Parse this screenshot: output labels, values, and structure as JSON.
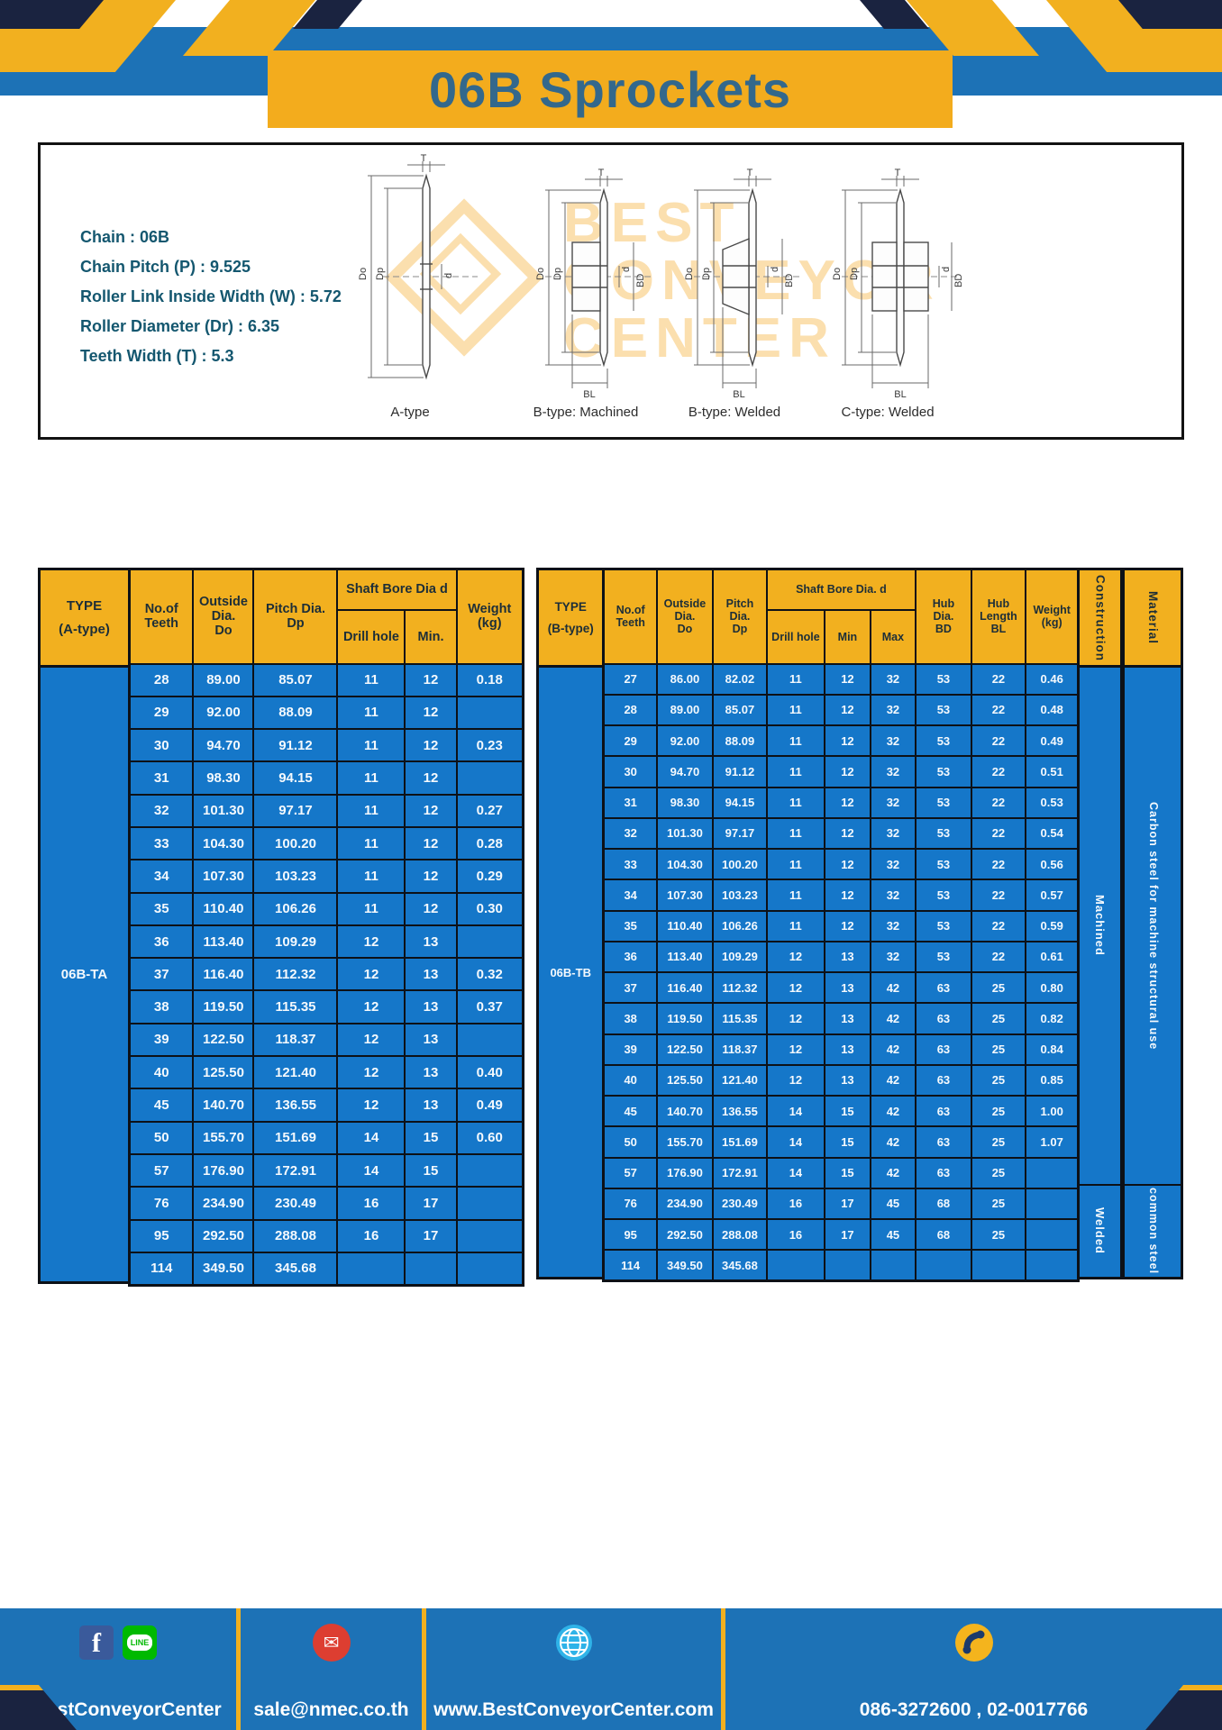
{
  "page_title": "06B Sprockets",
  "colors": {
    "band_blue": "#1d72b6",
    "cell_blue": "#1577c9",
    "header_yellow": "#f2b01f",
    "navy_accent": "#1a2340",
    "title_text": "#33688c"
  },
  "specs": {
    "lines": "Chain : 06B\nChain Pitch (P) : 9.525\nRoller Link Inside Width (W) : 5.72\nRoller Diameter (Dr) : 6.35\nTeeth Width (T) : 5.3"
  },
  "watermark": {
    "text": "BEST\nCONVEYOR\nCENTER"
  },
  "diagrams": {
    "labels": [
      "A-type",
      "B-type: Machined",
      "B-type: Welded",
      "C-type: Welded"
    ],
    "dims": {
      "t": "T",
      "do": "Do",
      "dp": "Dp",
      "d": "d",
      "bd": "BD",
      "bl": "BL"
    }
  },
  "table_a": {
    "type_header": "TYPE\n(A-type)",
    "type_value": "06B-TA",
    "headers": {
      "teeth": "No.of\nTeeth",
      "outside": "Outside\nDia.\nDo",
      "pitch": "Pitch Dia.\nDp",
      "shaft_bore": "Shaft Bore Dia d",
      "drill": "Drill hole",
      "min": "Min.",
      "weight": "Weight\n(kg)"
    },
    "rows": [
      [
        "28",
        "89.00",
        "85.07",
        "11",
        "12",
        "0.18"
      ],
      [
        "29",
        "92.00",
        "88.09",
        "11",
        "12",
        ""
      ],
      [
        "30",
        "94.70",
        "91.12",
        "11",
        "12",
        "0.23"
      ],
      [
        "31",
        "98.30",
        "94.15",
        "11",
        "12",
        ""
      ],
      [
        "32",
        "101.30",
        "97.17",
        "11",
        "12",
        "0.27"
      ],
      [
        "33",
        "104.30",
        "100.20",
        "11",
        "12",
        "0.28"
      ],
      [
        "34",
        "107.30",
        "103.23",
        "11",
        "12",
        "0.29"
      ],
      [
        "35",
        "110.40",
        "106.26",
        "11",
        "12",
        "0.30"
      ],
      [
        "36",
        "113.40",
        "109.29",
        "12",
        "13",
        ""
      ],
      [
        "37",
        "116.40",
        "112.32",
        "12",
        "13",
        "0.32"
      ],
      [
        "38",
        "119.50",
        "115.35",
        "12",
        "13",
        "0.37"
      ],
      [
        "39",
        "122.50",
        "118.37",
        "12",
        "13",
        ""
      ],
      [
        "40",
        "125.50",
        "121.40",
        "12",
        "13",
        "0.40"
      ],
      [
        "45",
        "140.70",
        "136.55",
        "12",
        "13",
        "0.49"
      ],
      [
        "50",
        "155.70",
        "151.69",
        "14",
        "15",
        "0.60"
      ],
      [
        "57",
        "176.90",
        "172.91",
        "14",
        "15",
        ""
      ],
      [
        "76",
        "234.90",
        "230.49",
        "16",
        "17",
        ""
      ],
      [
        "95",
        "292.50",
        "288.08",
        "16",
        "17",
        ""
      ],
      [
        "114",
        "349.50",
        "345.68",
        "",
        "",
        ""
      ]
    ]
  },
  "table_b": {
    "type_header": "TYPE\n(B-type)",
    "type_value": "06B-TB",
    "headers": {
      "teeth": "No.of\nTeeth",
      "outside": "Outside\nDia.\nDo",
      "pitch": "Pitch\nDia.\nDp",
      "shaft_bore": "Shaft Bore Dia. d",
      "drill": "Drill hole",
      "min": "Min",
      "max": "Max",
      "hub_dia": "Hub\nDia.\nBD",
      "hub_len": "Hub\nLength\nBL",
      "weight": "Weight\n(kg)",
      "construction": "Construction",
      "material": "Material"
    },
    "construction_machined": "Machined",
    "construction_welded": "Welded",
    "material_main": "Carbon steel for machine structural use",
    "material_sub": "common steel",
    "rows": [
      [
        "27",
        "86.00",
        "82.02",
        "11",
        "12",
        "32",
        "53",
        "22",
        "0.46"
      ],
      [
        "28",
        "89.00",
        "85.07",
        "11",
        "12",
        "32",
        "53",
        "22",
        "0.48"
      ],
      [
        "29",
        "92.00",
        "88.09",
        "11",
        "12",
        "32",
        "53",
        "22",
        "0.49"
      ],
      [
        "30",
        "94.70",
        "91.12",
        "11",
        "12",
        "32",
        "53",
        "22",
        "0.51"
      ],
      [
        "31",
        "98.30",
        "94.15",
        "11",
        "12",
        "32",
        "53",
        "22",
        "0.53"
      ],
      [
        "32",
        "101.30",
        "97.17",
        "11",
        "12",
        "32",
        "53",
        "22",
        "0.54"
      ],
      [
        "33",
        "104.30",
        "100.20",
        "11",
        "12",
        "32",
        "53",
        "22",
        "0.56"
      ],
      [
        "34",
        "107.30",
        "103.23",
        "11",
        "12",
        "32",
        "53",
        "22",
        "0.57"
      ],
      [
        "35",
        "110.40",
        "106.26",
        "11",
        "12",
        "32",
        "53",
        "22",
        "0.59"
      ],
      [
        "36",
        "113.40",
        "109.29",
        "12",
        "13",
        "32",
        "53",
        "22",
        "0.61"
      ],
      [
        "37",
        "116.40",
        "112.32",
        "12",
        "13",
        "42",
        "63",
        "25",
        "0.80"
      ],
      [
        "38",
        "119.50",
        "115.35",
        "12",
        "13",
        "42",
        "63",
        "25",
        "0.82"
      ],
      [
        "39",
        "122.50",
        "118.37",
        "12",
        "13",
        "42",
        "63",
        "25",
        "0.84"
      ],
      [
        "40",
        "125.50",
        "121.40",
        "12",
        "13",
        "42",
        "63",
        "25",
        "0.85"
      ],
      [
        "45",
        "140.70",
        "136.55",
        "14",
        "15",
        "42",
        "63",
        "25",
        "1.00"
      ],
      [
        "50",
        "155.70",
        "151.69",
        "14",
        "15",
        "42",
        "63",
        "25",
        "1.07"
      ],
      [
        "57",
        "176.90",
        "172.91",
        "14",
        "15",
        "42",
        "63",
        "25",
        ""
      ],
      [
        "76",
        "234.90",
        "230.49",
        "16",
        "17",
        "45",
        "68",
        "25",
        ""
      ],
      [
        "95",
        "292.50",
        "288.08",
        "16",
        "17",
        "45",
        "68",
        "25",
        ""
      ],
      [
        "114",
        "349.50",
        "345.68",
        "",
        "",
        "",
        "",
        "",
        ""
      ]
    ]
  },
  "footer": {
    "social": "@BestConveyorCenter",
    "email": "sale@nmec.co.th",
    "website": "www.BestConveyorCenter.com",
    "phone": "086-3272600 , 02-0017766",
    "icons": [
      "facebook-icon",
      "line-icon",
      "mail-icon",
      "globe-icon",
      "phone-icon"
    ],
    "mail_glyph": "✉"
  }
}
